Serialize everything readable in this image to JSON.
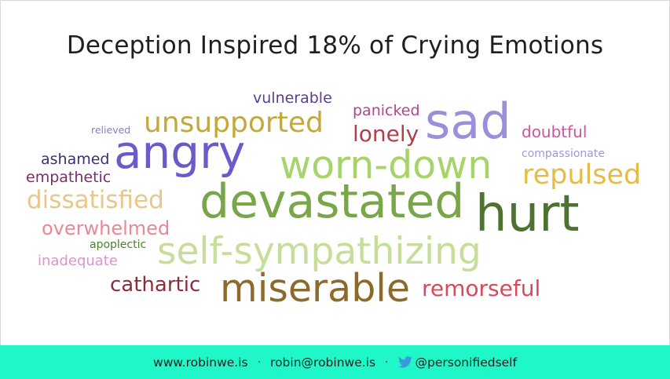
{
  "title": "Deception Inspired 18% of Crying Emotions",
  "words": [
    {
      "text": "vulnerable",
      "color": "#5b3e94"
    },
    {
      "text": "panicked",
      "color": "#b0468f"
    },
    {
      "text": "relieved",
      "color": "#8a7ac8"
    },
    {
      "text": "unsupported",
      "color": "#c3a83c"
    },
    {
      "text": "lonely",
      "color": "#b0404a"
    },
    {
      "text": "sad",
      "color": "#9b8fd9"
    },
    {
      "text": "doubtful",
      "color": "#c9579a"
    },
    {
      "text": "angry",
      "color": "#6b5ac9"
    },
    {
      "text": "compassionate",
      "color": "#9b9ad9"
    },
    {
      "text": "ashamed",
      "color": "#3b3078"
    },
    {
      "text": "worn-down",
      "color": "#a6d36a"
    },
    {
      "text": "empathetic",
      "color": "#7a2f6b"
    },
    {
      "text": "repulsed",
      "color": "#e7bc44"
    },
    {
      "text": "dissatisfied",
      "color": "#e6c78e"
    },
    {
      "text": "devastated",
      "color": "#7aa64a"
    },
    {
      "text": "hurt",
      "color": "#4e7230"
    },
    {
      "text": "overwhelmed",
      "color": "#e88895"
    },
    {
      "text": "apoplectic",
      "color": "#4e7f2a"
    },
    {
      "text": "self-sympathizing",
      "color": "#c6de99"
    },
    {
      "text": "inadequate",
      "color": "#d995cc"
    },
    {
      "text": "cathartic",
      "color": "#8c2e3a"
    },
    {
      "text": "miserable",
      "color": "#8c6a2c"
    },
    {
      "text": "remorseful",
      "color": "#d9495a"
    }
  ],
  "footer": {
    "website": "www.robinwe.is",
    "email": "robin@robinwe.is",
    "twitter": "@personifiedself",
    "separator": "·",
    "twitter_icon": "twitter-bird-icon",
    "background": "#1ff7c8"
  }
}
